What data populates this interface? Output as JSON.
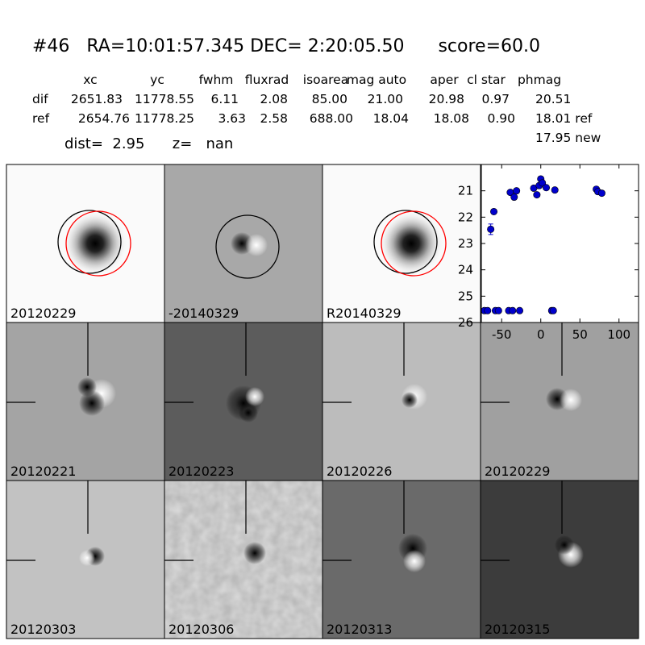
{
  "header": {
    "title": "#46   RA=10:01:57.345 DEC= 2:20:05.50      score=60.0",
    "dist": "dist=  2.95      z=   nan"
  },
  "table": {
    "columns": [
      "xc",
      "yc",
      "fwhm",
      "fluxrad",
      "isoarea",
      "mag auto",
      "aper",
      "cl star",
      "phmag"
    ],
    "rows": [
      [
        "dif",
        "2651.83",
        "11778.55",
        "6.11",
        "2.08",
        "85.00",
        "21.00",
        "20.98",
        "0.97",
        "20.51"
      ],
      [
        "ref",
        "2654.76",
        "11778.25",
        "3.63",
        "2.58",
        "688.00",
        "18.04",
        "18.08",
        "0.90",
        "18.01 ref"
      ]
    ],
    "extra": "17.95 new"
  },
  "panels": [
    {
      "label": "20120229"
    },
    {
      "label": "-20140329"
    },
    {
      "label": "R20140329"
    },
    {
      "label": "20120221"
    },
    {
      "label": "20120223"
    },
    {
      "label": "20120226"
    },
    {
      "label": "20120229",
      "color": "#ff0000"
    },
    {
      "label": "20120303"
    },
    {
      "label": "20120306"
    },
    {
      "label": "20120313"
    },
    {
      "label": "20120315"
    }
  ],
  "chart_data": {
    "type": "scatter",
    "color": "#0000cc",
    "x": [
      -72,
      -68,
      -58,
      -54,
      -41,
      -36,
      -27,
      14,
      16,
      -64,
      -60,
      -39,
      -34,
      -31,
      -9,
      -5,
      -2,
      0,
      2,
      7,
      18,
      71,
      73,
      78
    ],
    "values": [
      25.55,
      25.55,
      25.55,
      25.55,
      25.55,
      25.55,
      25.55,
      25.55,
      25.55,
      22.46,
      21.79,
      21.06,
      21.24,
      21.0,
      20.9,
      21.15,
      20.8,
      20.55,
      20.7,
      20.88,
      20.97,
      20.94,
      21.03,
      21.09
    ],
    "errors": [
      0.05,
      0.05,
      0.05,
      0.05,
      0.05,
      0.05,
      0.05,
      0.1,
      0.05,
      0.2,
      0.05,
      0.05,
      0.05,
      0.05,
      0.05,
      0.05,
      0.05,
      0.05,
      0.05,
      0.05,
      0.05,
      0.05,
      0.05,
      0.05
    ],
    "xlim": [
      -76,
      125
    ],
    "ylim": [
      26,
      20
    ],
    "xticks": [
      -50,
      0,
      50,
      100
    ],
    "yticks": [
      21,
      22,
      23,
      24,
      25,
      26
    ]
  }
}
